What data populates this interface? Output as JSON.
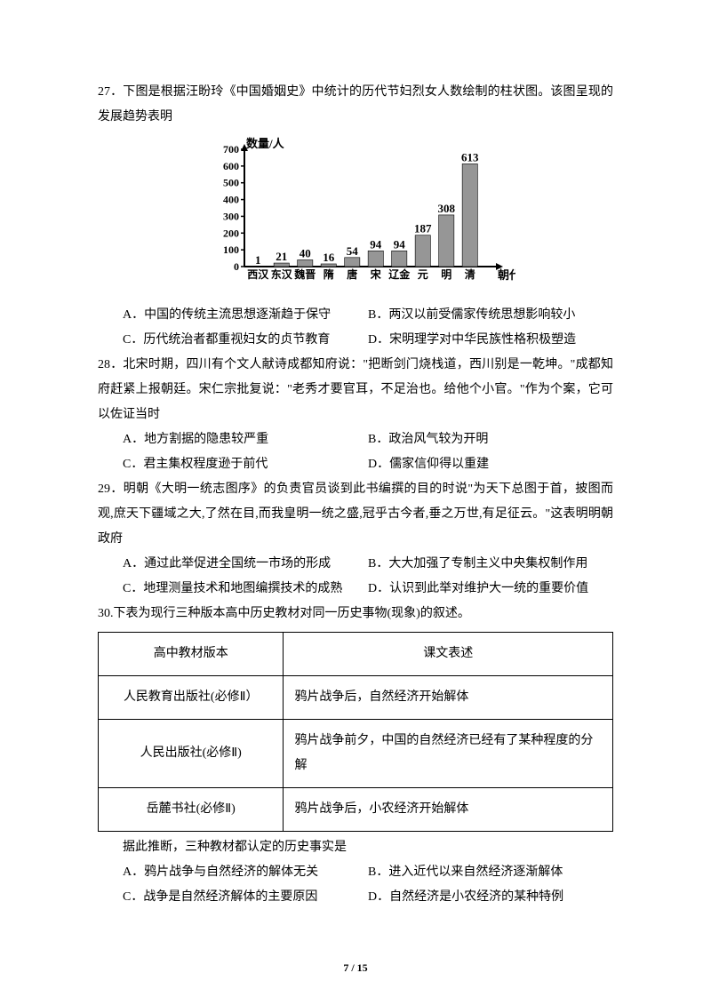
{
  "q27": {
    "prompt": "27．下图是根据汪盼玲《中国婚姻史》中统计的历代节妇烈女人数绘制的柱状图。该图呈现的发展趋势表明",
    "chart": {
      "type": "bar",
      "y_label": "数量/人",
      "x_label": "朝代",
      "categories": [
        "西汉",
        "东汉",
        "魏晋",
        "隋",
        "唐",
        "宋",
        "辽金",
        "元",
        "明",
        "清"
      ],
      "values": [
        1,
        21,
        40,
        16,
        54,
        94,
        94,
        187,
        308,
        613
      ],
      "ylim": [
        0,
        700
      ],
      "yticks": [
        0,
        100,
        200,
        300,
        400,
        500,
        600,
        700
      ],
      "bar_color": "#969696",
      "value_color": "#000000",
      "axis_color": "#000000",
      "bg": "#ffffff",
      "label_fontsize": 13,
      "tick_fontsize": 12
    },
    "opts": {
      "A": "A．中国的传统主流思想逐渐趋于保守",
      "B": "B．两汉以前受儒家传统思想影响较小",
      "C": "C．历代统治者都重视妇女的贞节教育",
      "D": "D．宋明理学对中华民族性格积极塑造"
    }
  },
  "q28": {
    "prompt": "28．北宋时期，四川有个文人献诗成都知府说：\"把断剑门烧栈道，西川别是一乾坤。\"成都知府赶紧上报朝廷。宋仁宗批复说：\"老秀才要官耳，不足治也。给他个小官。\"作为个案，它可以佐证当时",
    "opts": {
      "A": "A．地方割据的隐患较严重",
      "B": "B．政治风气较为开明",
      "C": "C．君主集权程度逊于前代",
      "D": "D．儒家信仰得以重建"
    }
  },
  "q29": {
    "prompt": "29．明朝《大明一统志图序》的负责官员谈到此书编撰的目的时说\"为天下总图于首，披图而观,庶天下疆域之大,了然在目,而我皇明一统之盛,冠乎古今者,垂之万世,有足征云。\"这表明明朝政府",
    "opts": {
      "A": "A．通过此举促进全国统一市场的形成",
      "B": "B．大大加强了专制主义中央集权制作用",
      "C": "C．地理测量技术和地图编撰技术的成熟",
      "D": "D．认识到此举对维护大一统的重要价值"
    }
  },
  "q30": {
    "prompt": "30.下表为现行三种版本高中历史教材对同一历史事物(现象)的叙述。",
    "table": {
      "headers": [
        "高中教材版本",
        "课文表述"
      ],
      "rows": [
        [
          "人民教育出版社(必修Ⅱ）",
          "鸦片战争后，自然经济开始解体"
        ],
        [
          "人民出版社(必修Ⅱ)",
          "鸦片战争前夕，中国的自然经济已经有了某种程度的分解"
        ],
        [
          "岳麓书社(必修Ⅱ)",
          "鸦片战争后，小农经济开始解体"
        ]
      ],
      "col_widths": [
        "36%",
        "64%"
      ]
    },
    "post": "据此推断，三种教材都认定的历史事实是",
    "opts": {
      "A": "A．鸦片战争与自然经济的解体无关",
      "B": "B．进入近代以来自然经济逐渐解体",
      "C": "C．战争是自然经济解体的主要原因",
      "D": "D．自然经济是小农经济的某种特例"
    }
  },
  "footer": "7 / 15"
}
